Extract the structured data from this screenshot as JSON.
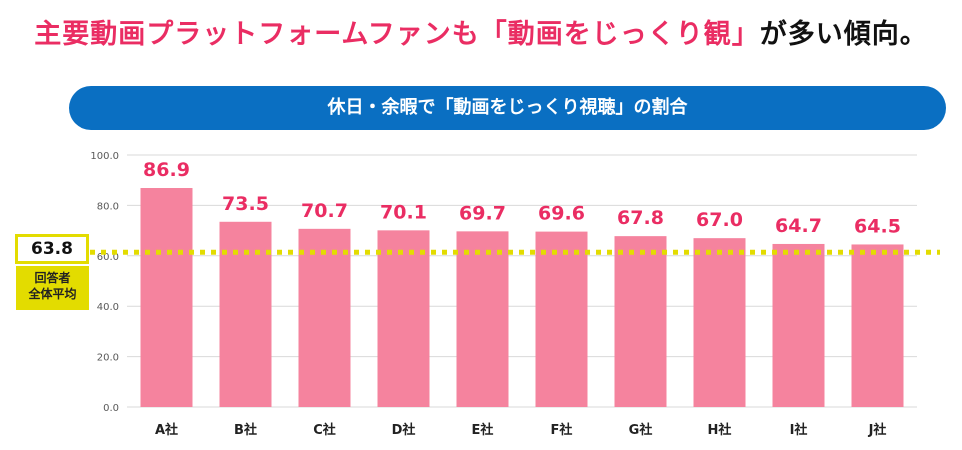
{
  "headline": {
    "part1": "主要動画プラットフォームファンも「動画をじっくり観」",
    "part2": "が多い傾向。"
  },
  "chart_data": {
    "type": "bar",
    "title": "休日・余暇で「動画をじっくり視聴」の割合",
    "categories": [
      "A社",
      "B社",
      "C社",
      "D社",
      "E社",
      "F社",
      "G社",
      "H社",
      "I社",
      "J社"
    ],
    "values": [
      86.9,
      73.5,
      70.7,
      70.1,
      69.7,
      69.6,
      67.8,
      67.0,
      64.7,
      64.5
    ],
    "value_labels": [
      "86.9",
      "73.5",
      "70.7",
      "70.1",
      "69.7",
      "69.6",
      "67.8",
      "67.0",
      "64.7",
      "64.5"
    ],
    "ylim": [
      0,
      100
    ],
    "yticks": [
      "0.0",
      "20.0",
      "40.0",
      "60.0",
      "80.0",
      "100.0"
    ],
    "ytick_values": [
      0,
      20,
      40,
      60,
      80,
      100
    ],
    "grid": true,
    "reference_line": {
      "value": 63.8,
      "label": "63.8",
      "caption": "回答者\n全体平均"
    },
    "colors": {
      "bar": "#f5839e",
      "label": "#ea2d63",
      "reference": "#e3dc00",
      "banner": "#0a6fc2"
    }
  }
}
